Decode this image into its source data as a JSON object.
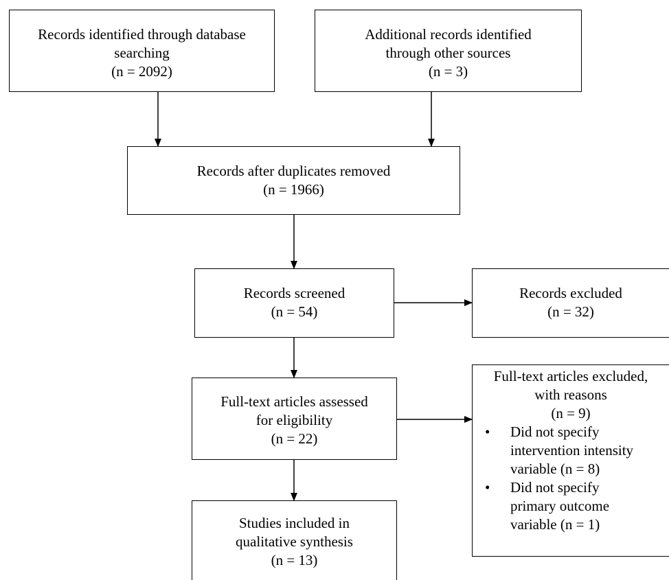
{
  "boxes": {
    "database": {
      "lines": [
        "Records identified through database",
        "searching",
        "(n = 2092)"
      ]
    },
    "other_sources": {
      "lines": [
        "Additional records identified",
        "through other sources",
        "(n = 3)"
      ]
    },
    "duplicates_removed": {
      "lines": [
        "Records after duplicates removed",
        "(n = 1966)"
      ]
    },
    "screened": {
      "lines": [
        "Records screened",
        "(n = 54)"
      ]
    },
    "excluded": {
      "lines": [
        "Records excluded",
        "(n = 32)"
      ]
    },
    "fulltext": {
      "lines": [
        "Full-text articles assessed",
        "for eligibility",
        "(n = 22)"
      ]
    },
    "fulltext_excluded": {
      "header_lines": [
        "Full-text articles excluded,",
        "with reasons",
        "(n = 9)"
      ],
      "bullet_glyph": "•",
      "reasons": [
        {
          "lines": [
            "Did not specify",
            "intervention intensity",
            "variable (n = 8)"
          ]
        },
        {
          "lines": [
            "Did not specify",
            "primary outcome",
            "variable (n = 1)"
          ]
        }
      ]
    },
    "included": {
      "lines": [
        "Studies included in",
        "qualitative synthesis",
        "(n = 13)"
      ]
    }
  },
  "colors": {
    "stroke": "#000000",
    "background": "#ffffff"
  }
}
